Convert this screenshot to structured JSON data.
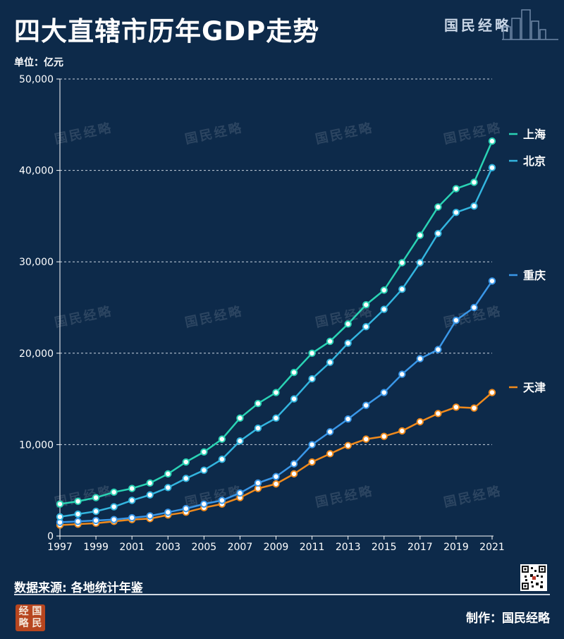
{
  "header": {
    "title": "四大直辖市历年GDP走势",
    "brand": "国民经略"
  },
  "unit_label": "单位：亿元",
  "watermark": "国民经略",
  "footer": {
    "source": "数据来源: 各地统计年鉴",
    "maker": "制作：国民经略",
    "logo_line1": "经 国",
    "logo_line2": "略 民"
  },
  "colors": {
    "background": "#0d2a4a",
    "shanghai": "#2ad3b4",
    "beijing": "#33b5df",
    "chongqing": "#3a97e8",
    "tianjin": "#f08a1c"
  },
  "chart_data": {
    "type": "line",
    "title": "四大直辖市历年GDP走势",
    "ylabel": "单位：亿元",
    "xlabel": "",
    "x": [
      1997,
      1998,
      1999,
      2000,
      2001,
      2002,
      2003,
      2004,
      2005,
      2006,
      2007,
      2008,
      2009,
      2010,
      2011,
      2012,
      2013,
      2014,
      2015,
      2016,
      2017,
      2018,
      2019,
      2020,
      2021
    ],
    "x_tick_labels": [
      "1997",
      "1999",
      "2001",
      "2003",
      "2005",
      "2007",
      "2009",
      "2011",
      "2013",
      "2015",
      "2017",
      "2019",
      "2021"
    ],
    "y_tick_labels": [
      "0",
      "10,000",
      "20,000",
      "30,000",
      "40,000",
      "50,000"
    ],
    "ylim": [
      0,
      50000
    ],
    "grid": "horizontal dashed",
    "legend_placement": "right end of lines",
    "series": [
      {
        "name": "上海",
        "color": "#2ad3b4",
        "values": [
          3500,
          3800,
          4200,
          4800,
          5200,
          5800,
          6800,
          8100,
          9200,
          10600,
          12900,
          14500,
          15700,
          17900,
          20000,
          21300,
          23200,
          25300,
          26900,
          29900,
          32900,
          36000,
          38000,
          38700,
          43200
        ]
      },
      {
        "name": "北京",
        "color": "#33b5df",
        "values": [
          2100,
          2400,
          2700,
          3200,
          3900,
          4500,
          5300,
          6300,
          7200,
          8400,
          10400,
          11800,
          12900,
          15000,
          17200,
          19000,
          21100,
          22900,
          24800,
          27000,
          29900,
          33100,
          35400,
          36100,
          40300
        ]
      },
      {
        "name": "重庆",
        "color": "#3a97e8",
        "values": [
          1500,
          1600,
          1700,
          1800,
          2000,
          2200,
          2600,
          3000,
          3500,
          3900,
          4700,
          5800,
          6500,
          7900,
          10000,
          11400,
          12800,
          14300,
          15700,
          17700,
          19400,
          20400,
          23600,
          25000,
          27900
        ]
      },
      {
        "name": "天津",
        "color": "#f08a1c",
        "values": [
          1200,
          1300,
          1400,
          1600,
          1800,
          1900,
          2300,
          2600,
          3100,
          3500,
          4200,
          5200,
          5700,
          6800,
          8100,
          9000,
          9900,
          10600,
          10900,
          11500,
          12500,
          13400,
          14100,
          14000,
          15700
        ]
      }
    ]
  }
}
